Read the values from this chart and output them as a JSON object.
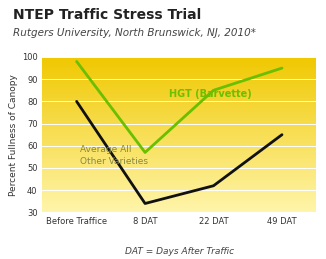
{
  "title": "NTEP Traffic Stress Trial",
  "subtitle": "Rutgers University, North Brunswick, NJ, 2010*",
  "xlabel": "DAT = Days After Traffic",
  "ylabel": "Percent Fullness of Canopy",
  "x_labels": [
    "Before Traffice",
    "8 DAT",
    "22 DAT",
    "49 DAT"
  ],
  "x_positions": [
    0,
    1,
    2,
    3
  ],
  "hgt_values": [
    98,
    57,
    85,
    95
  ],
  "avg_values": [
    80,
    34,
    42,
    65
  ],
  "hgt_color": "#6abf00",
  "avg_color": "#111111",
  "bg_color_top": "#f5d800",
  "bg_color_bottom": "#ffe97a",
  "ylim": [
    30,
    100
  ],
  "hgt_label": "HGT (Barvette)",
  "avg_label": "Average All\nOther Varieties",
  "title_fontsize": 10,
  "subtitle_fontsize": 7.5,
  "axis_fontsize": 6.5,
  "tick_fontsize": 6,
  "label_fontsize": 6.5
}
